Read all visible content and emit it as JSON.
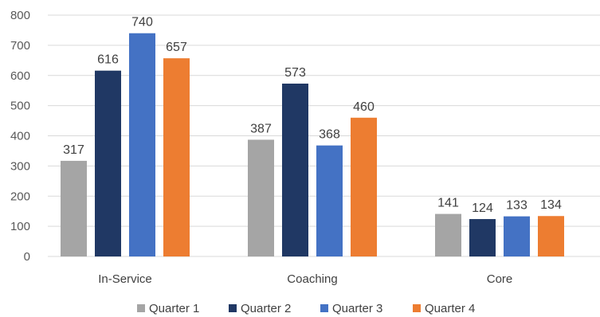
{
  "chart_data": {
    "type": "bar",
    "title": "",
    "xlabel": "",
    "ylabel": "",
    "categories": [
      "In-Service",
      "Coaching",
      "Core"
    ],
    "series": [
      {
        "name": "Quarter 1",
        "color": "#a5a5a5",
        "values": [
          317,
          387,
          141
        ]
      },
      {
        "name": "Quarter 2",
        "color": "#203864",
        "values": [
          616,
          573,
          124
        ]
      },
      {
        "name": "Quarter 3",
        "color": "#4472c4",
        "values": [
          740,
          368,
          133
        ]
      },
      {
        "name": "Quarter 4",
        "color": "#ed7d31",
        "values": [
          657,
          460,
          134
        ]
      }
    ],
    "ylim": [
      0,
      800
    ],
    "yticks": [
      0,
      100,
      200,
      300,
      400,
      500,
      600,
      700,
      800
    ],
    "grid": true,
    "data_labels": true,
    "legend_position": "bottom"
  }
}
